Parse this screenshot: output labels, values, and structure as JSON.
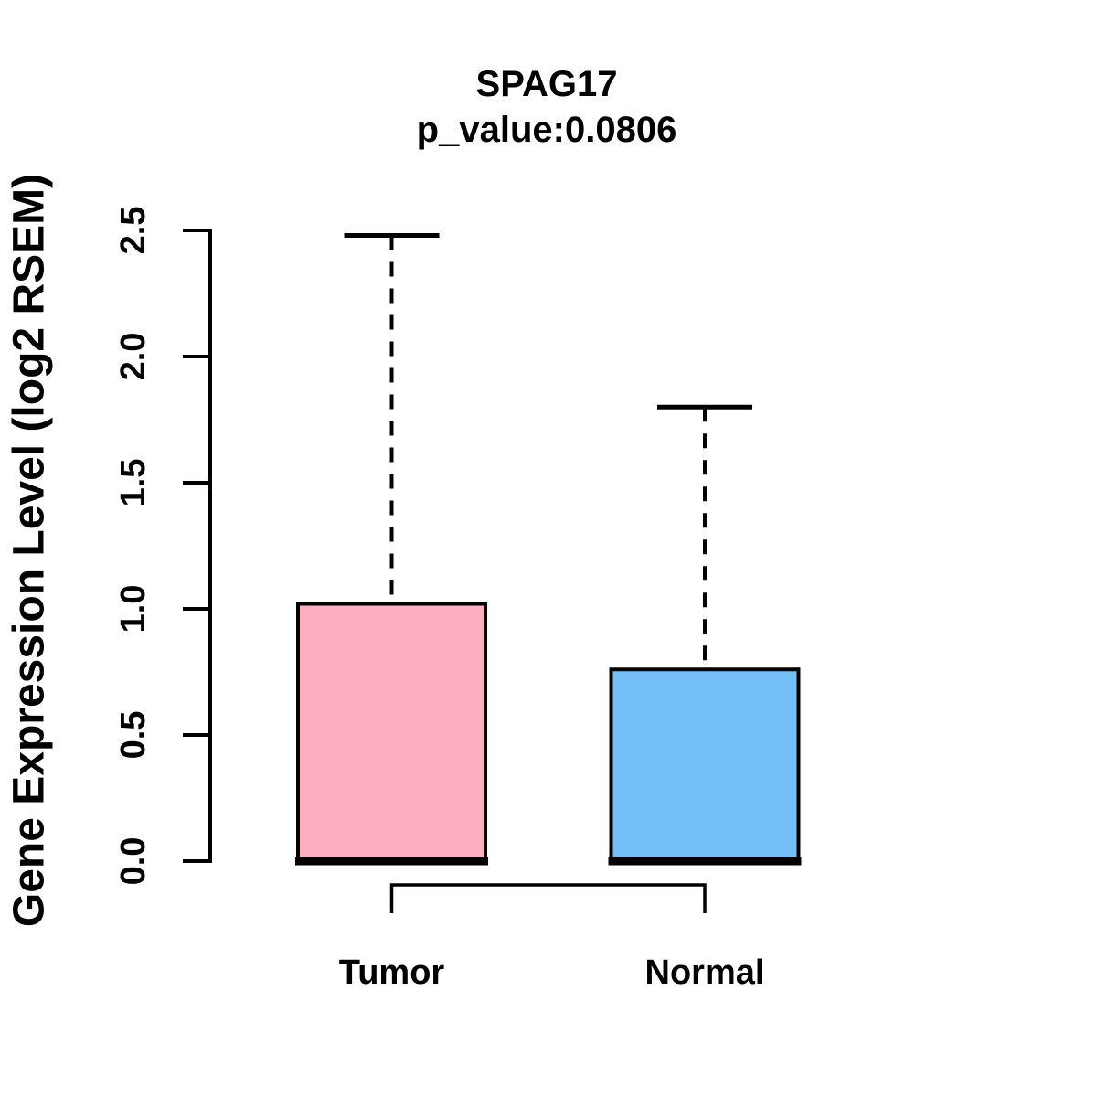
{
  "title": {
    "line1": "SPAG17",
    "line2": "p_value:0.0806"
  },
  "chart_data": {
    "type": "boxplot",
    "title": "SPAG17",
    "subtitle": "p_value:0.0806",
    "xlabel": "",
    "ylabel": "Gene Expression Level (log2 RSEM)",
    "ylim": [
      0.0,
      2.5
    ],
    "yticks": [
      "0.0",
      "0.5",
      "1.0",
      "1.5",
      "2.0",
      "2.5"
    ],
    "ytick_orientation": "rotated-90",
    "grid": false,
    "legend": "none",
    "categories": [
      "Tumor",
      "Normal"
    ],
    "groups": [
      {
        "label": "Tumor",
        "fill_color": "#FDAEC0",
        "stats": {
          "lower_whisker": 0.0,
          "q1": 0.0,
          "median": 0.0,
          "q3": 1.02,
          "upper_whisker": 2.48
        }
      },
      {
        "label": "Normal",
        "fill_color": "#74BFF7",
        "stats": {
          "lower_whisker": 0.0,
          "q1": 0.0,
          "median": 0.0,
          "q3": 0.76,
          "upper_whisker": 1.8
        }
      }
    ],
    "comparison_bracket": {
      "connects": [
        "Tumor",
        "Normal"
      ],
      "annotation": ""
    },
    "styles": {
      "background": "#FFFFFF",
      "box_border_color": "#000000",
      "median_color": "#000000",
      "whisker_style": "dashed",
      "axis_color": "#000000"
    }
  }
}
